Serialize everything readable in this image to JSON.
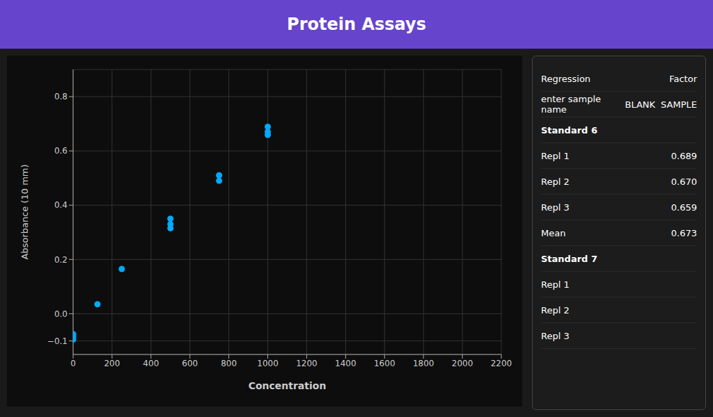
{
  "chart_data": {
    "type": "scatter",
    "title": "Protein Assays",
    "xlabel": "Concentration",
    "ylabel": "Absorbance (10 mm)",
    "x": [
      0,
      0,
      0,
      125,
      250,
      500,
      500,
      500,
      750,
      750,
      1000,
      1000,
      1000
    ],
    "values": [
      -0.075,
      -0.085,
      -0.095,
      0.035,
      0.165,
      0.315,
      0.33,
      0.35,
      0.49,
      0.51,
      0.659,
      0.67,
      0.689
    ],
    "color": "#00aaff",
    "xlim": [
      0,
      2200
    ],
    "xticks": [
      0,
      200,
      400,
      600,
      800,
      1000,
      1200,
      1400,
      1600,
      1800,
      2000,
      2200
    ],
    "ylim": [
      -0.15,
      0.9
    ],
    "yticks": [
      {
        "value": -0.1,
        "label": "−0.1"
      },
      {
        "value": 0.0,
        "label": "0.0"
      },
      0.2,
      0.4,
      0.6,
      0.8
    ],
    "grid": true,
    "annotations": [
      [
        "Regression",
        "Factor"
      ],
      [
        "enter sample name",
        "BLANK",
        "SAMPLE"
      ],
      [
        "Standard 6"
      ],
      [
        "Repl 1",
        "0.689"
      ],
      [
        "Repl 2",
        "0.670"
      ],
      [
        "Repl 3",
        "0.659"
      ],
      [
        "Mean",
        "0.673"
      ],
      [
        "Standard 7"
      ],
      [
        "Repl 1"
      ],
      [
        "Repl 2"
      ],
      [
        "Repl 3"
      ]
    ]
  }
}
